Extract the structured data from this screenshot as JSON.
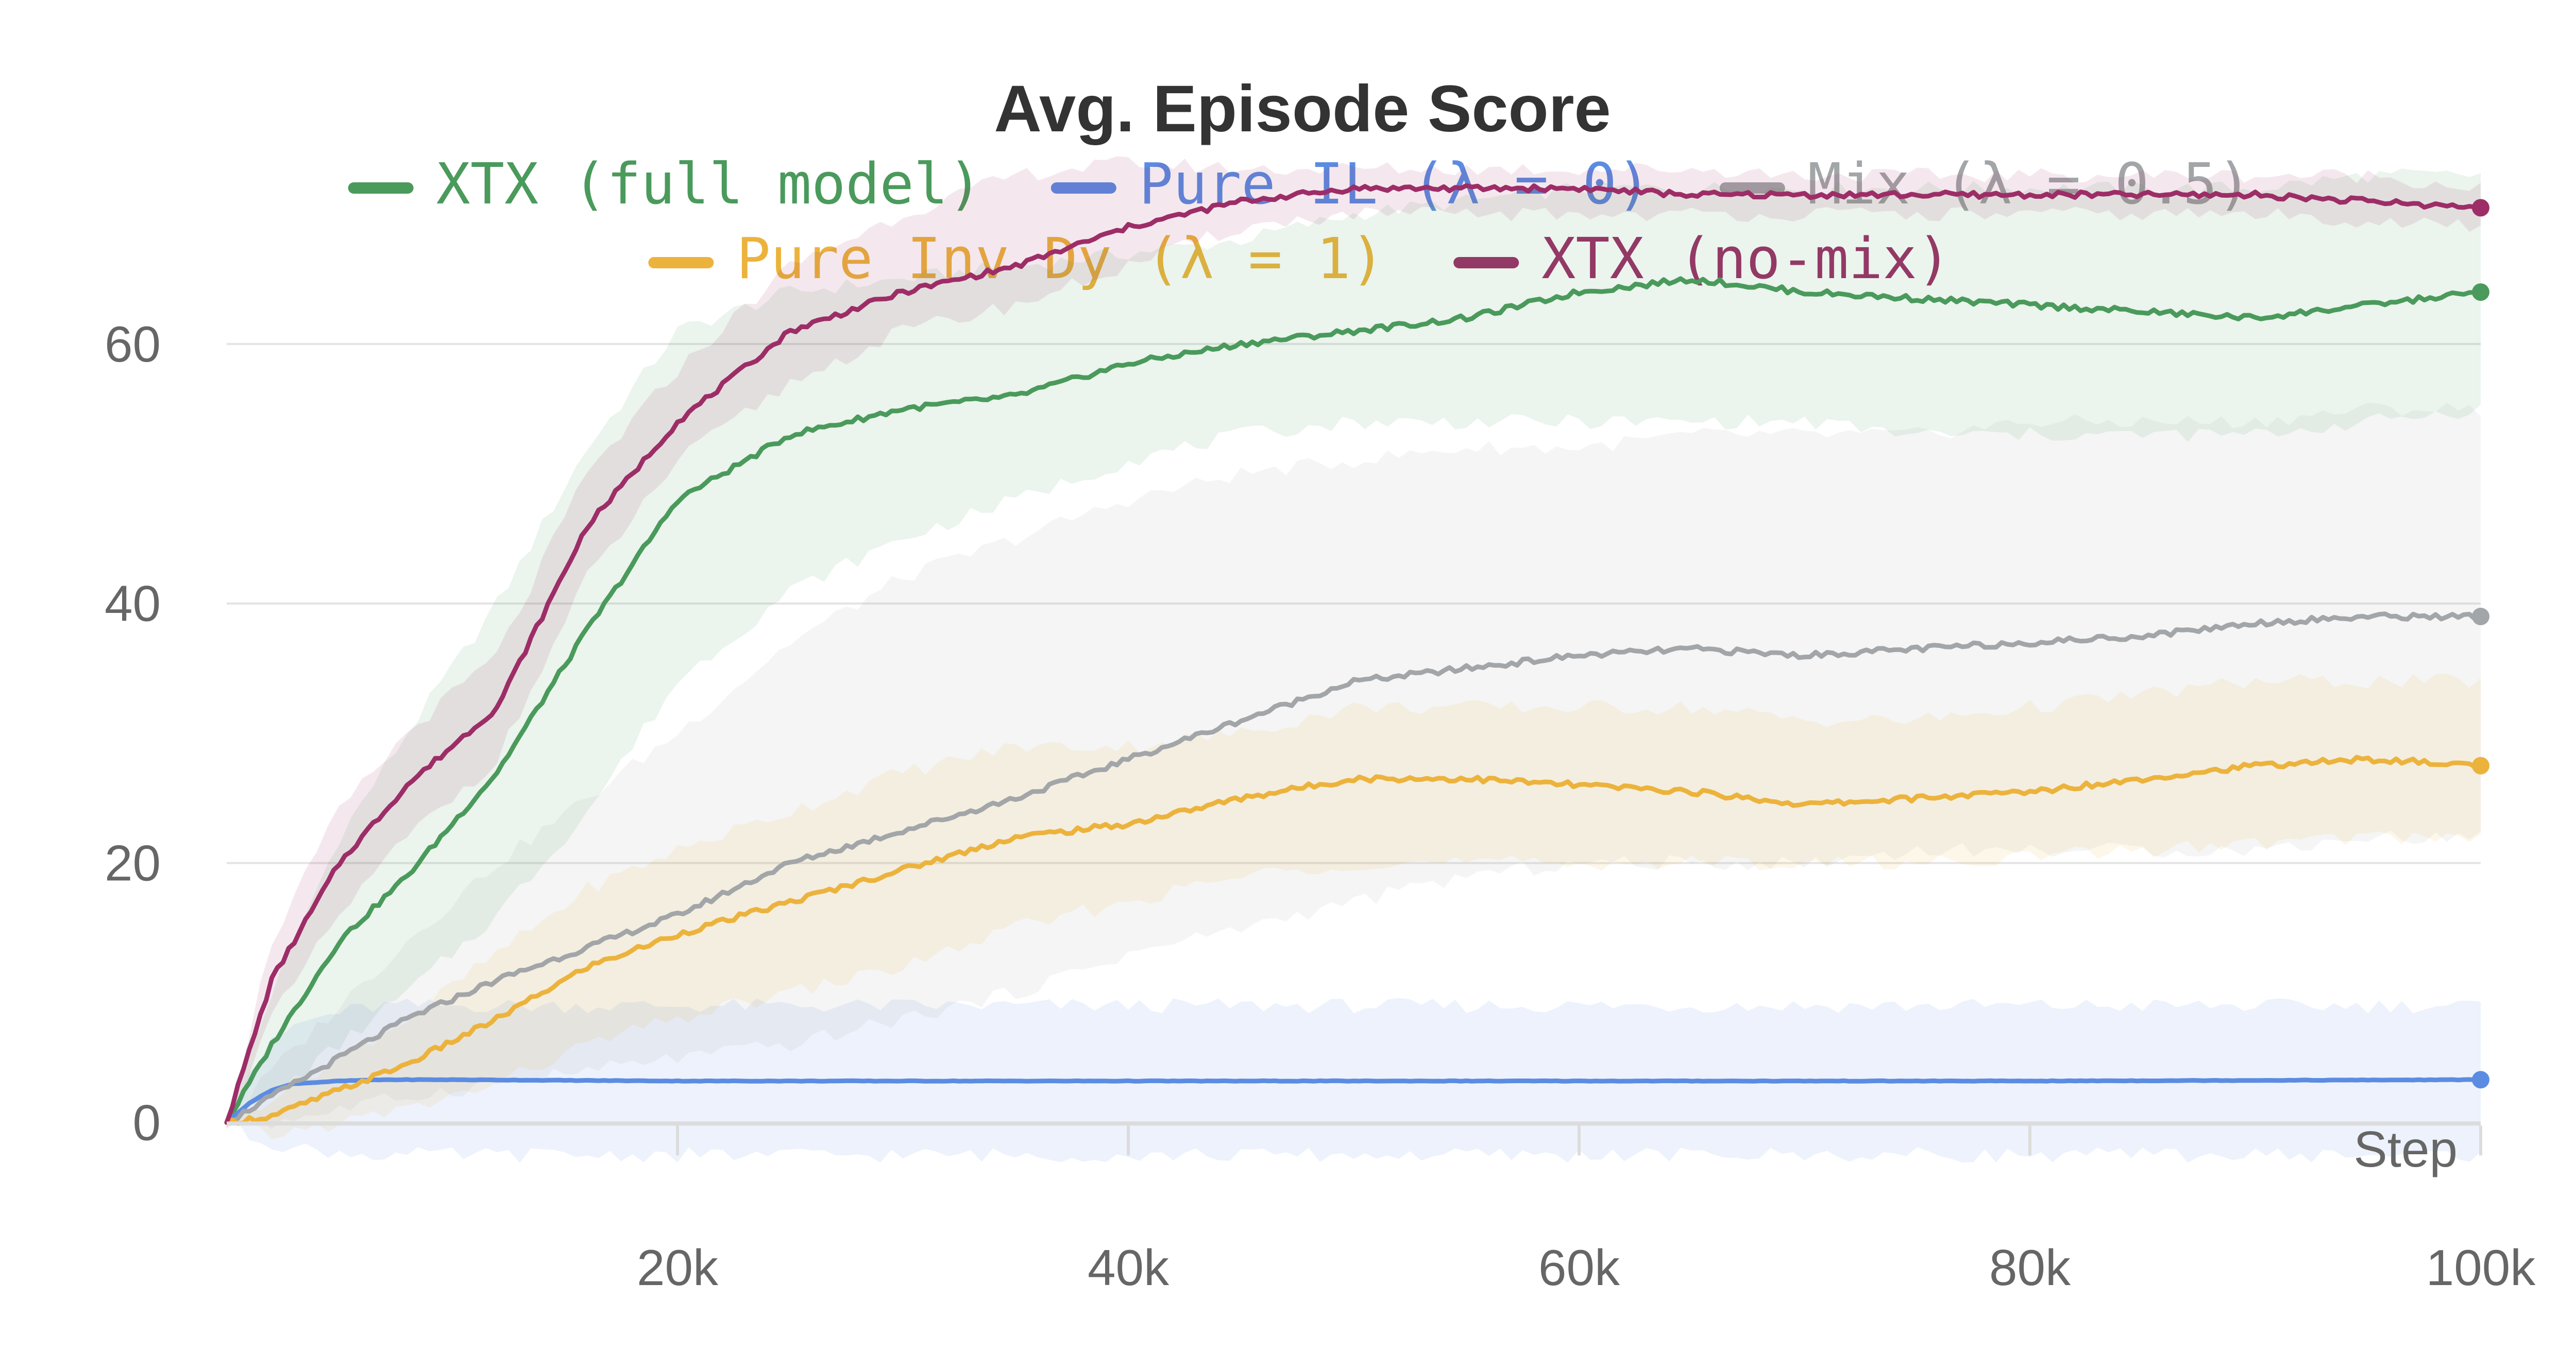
{
  "chart_data": {
    "type": "line",
    "title": "Avg. Episode Score",
    "xlabel": "Step",
    "ylabel": "",
    "xlim": [
      0,
      100000
    ],
    "ylim": [
      -3,
      75
    ],
    "xticks": [
      20000,
      40000,
      60000,
      80000,
      100000
    ],
    "xtick_labels": [
      "20k",
      "40k",
      "60k",
      "80k",
      "100k"
    ],
    "yticks": [
      0,
      20,
      40,
      60
    ],
    "ytick_labels": [
      "0",
      "20",
      "40",
      "60"
    ],
    "grid": "horizontal",
    "legend_position": "top-center",
    "series": [
      {
        "name": "XTX (full model)",
        "color": "#4a9a5c",
        "x": [
          0,
          2000,
          5000,
          8000,
          12000,
          16000,
          20000,
          25000,
          30000,
          35000,
          40000,
          45000,
          50000,
          55000,
          60000,
          65000,
          70000,
          75000,
          80000,
          85000,
          90000,
          95000,
          100000
        ],
        "values": [
          0,
          6,
          14,
          19,
          27,
          38,
          48,
          53,
          55,
          56,
          58.5,
          60,
          61,
          62,
          64,
          65,
          64,
          63.5,
          63,
          62.5,
          62,
          63,
          64
        ],
        "band_lower": [
          0,
          2,
          6,
          10,
          16,
          24,
          34,
          41,
          45,
          48,
          51,
          53,
          54,
          54,
          54,
          54,
          54,
          53,
          53,
          53,
          53,
          54,
          55
        ],
        "band_upper": [
          0,
          10,
          22,
          30,
          40,
          52,
          61,
          64,
          65,
          66,
          67,
          68,
          70,
          71,
          72,
          72,
          72,
          72,
          72,
          72,
          72,
          73,
          73
        ]
      },
      {
        "name": "Pure IL (λ = 0)",
        "color": "#5b8ce2",
        "x": [
          0,
          1000,
          2000,
          3000,
          5000,
          7000,
          10000,
          20000,
          40000,
          60000,
          80000,
          100000
        ],
        "values": [
          0,
          1.5,
          2.5,
          3,
          3.2,
          3.3,
          3.3,
          3.2,
          3.2,
          3.2,
          3.2,
          3.3
        ],
        "band_lower": [
          0,
          -1,
          -1.5,
          -2,
          -2.3,
          -2.5,
          -2.5,
          -2.5,
          -2.5,
          -2.5,
          -2.5,
          -2.5
        ],
        "band_upper": [
          0,
          4,
          6,
          7.5,
          8.5,
          9,
          9,
          9,
          9,
          9,
          9,
          9
        ]
      },
      {
        "name": "Mix (λ = 0.5)",
        "color": "#a3a6a8",
        "x": [
          0,
          2000,
          5000,
          8000,
          12000,
          16000,
          20000,
          25000,
          30000,
          35000,
          40000,
          45000,
          50000,
          55000,
          60000,
          65000,
          70000,
          75000,
          80000,
          85000,
          90000,
          95000,
          100000
        ],
        "values": [
          0,
          2,
          5,
          8,
          11,
          13.5,
          16,
          20,
          22.5,
          25,
          28,
          31,
          34,
          35,
          36,
          36.5,
          36,
          36.5,
          37,
          37.5,
          38.5,
          39,
          39
        ],
        "band_lower": [
          0,
          0,
          1,
          2,
          3,
          4,
          5,
          6,
          8,
          10,
          13,
          15,
          17,
          19,
          20,
          20,
          20,
          21,
          21,
          21,
          21,
          22,
          22
        ],
        "band_upper": [
          0,
          4,
          9,
          14,
          20,
          25,
          30,
          37,
          42,
          45,
          48,
          50,
          51,
          52,
          52,
          53,
          53,
          53,
          54,
          54,
          54,
          55,
          55
        ]
      },
      {
        "name": "Pure Inv Dy (λ = 1)",
        "color": "#ecb33c",
        "x": [
          0,
          2000,
          5000,
          8000,
          12000,
          16000,
          20000,
          25000,
          30000,
          35000,
          40000,
          45000,
          50000,
          55000,
          60000,
          65000,
          70000,
          75000,
          80000,
          85000,
          90000,
          95000,
          100000
        ],
        "values": [
          0,
          0.5,
          2.5,
          4.5,
          8,
          12,
          14.5,
          17,
          19.5,
          22,
          23,
          25,
          26.5,
          26.5,
          26,
          25.5,
          24.5,
          25,
          25.5,
          26.5,
          27.5,
          28,
          27.5
        ],
        "band_lower": [
          0,
          -1,
          0,
          1,
          3,
          6,
          8,
          10,
          12,
          15,
          17,
          19,
          20,
          20,
          20,
          20,
          20,
          20,
          20.5,
          21,
          21.5,
          22,
          22
        ],
        "band_upper": [
          0,
          2,
          5,
          8,
          13,
          18,
          21,
          24,
          27,
          29,
          29,
          30,
          32,
          32,
          32,
          32,
          31,
          31,
          32,
          33,
          34,
          34,
          34
        ]
      },
      {
        "name": "XTX (no-mix)",
        "color": "#9d2d67",
        "x": [
          0,
          2000,
          5000,
          8000,
          12000,
          16000,
          20000,
          25000,
          30000,
          35000,
          40000,
          45000,
          50000,
          55000,
          60000,
          65000,
          70000,
          75000,
          80000,
          85000,
          90000,
          95000,
          100000
        ],
        "values": [
          0,
          11,
          20,
          26,
          32,
          46,
          54,
          61,
          64,
          66,
          69,
          71,
          72,
          72,
          72,
          71.5,
          71.5,
          71.5,
          71.5,
          71.5,
          71.5,
          71,
          70.5
        ],
        "band_lower": [
          0,
          8,
          16,
          22,
          28,
          42,
          51,
          57,
          61,
          63,
          66,
          69,
          70,
          70,
          70,
          70,
          70,
          70,
          70,
          70,
          70,
          69.5,
          69
        ],
        "band_upper": [
          0,
          14,
          24,
          30,
          36,
          50,
          58,
          66,
          70,
          73,
          74,
          73.5,
          73.5,
          73.5,
          73.5,
          73.5,
          73,
          73,
          73,
          73,
          73,
          73,
          72
        ]
      }
    ]
  }
}
